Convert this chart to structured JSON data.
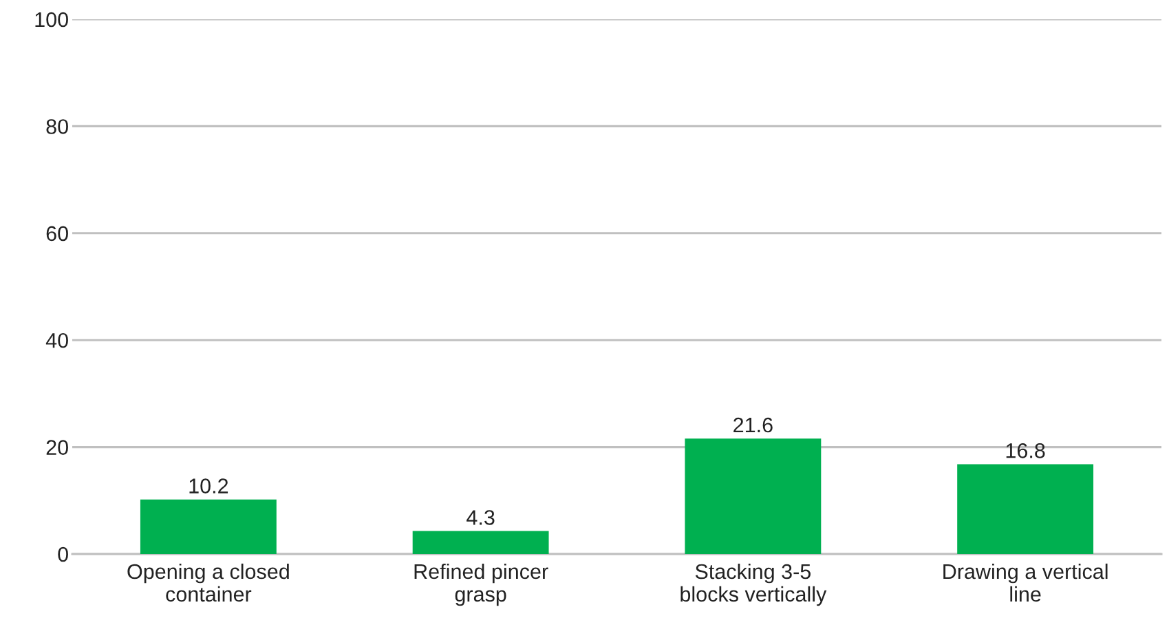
{
  "chart_data": {
    "type": "bar",
    "categories": [
      "Opening a closed\ncontainer",
      "Refined pincer\ngrasp",
      "Stacking 3-5\nblocks vertically",
      "Drawing a vertical\nline"
    ],
    "values": [
      10.2,
      4.3,
      21.6,
      16.8
    ],
    "color": "#00b050",
    "ylim": [
      0,
      100
    ],
    "yticks": [
      0,
      20,
      40,
      60,
      80,
      100
    ],
    "grid": "y",
    "data_labels": true
  }
}
